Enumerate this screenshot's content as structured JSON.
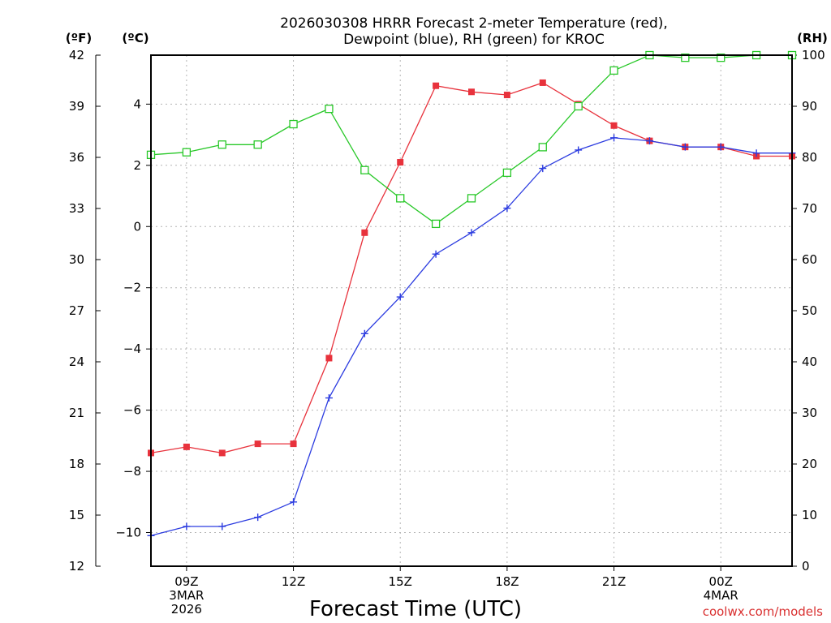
{
  "chart_data": {
    "type": "line",
    "title_lines": [
      "2026030308 HRRR Forecast 2-meter Temperature (red),",
      "Dewpoint (blue), RH (green) for KROC"
    ],
    "xlabel": "Forecast Time (UTC)",
    "credit": "coolwx.com/models",
    "units": {
      "fahrenheit": "(ºF)",
      "celsius": "(ºC)",
      "rh": "(RH)"
    },
    "x_hours": [
      8,
      9,
      10,
      11,
      12,
      13,
      14,
      15,
      16,
      17,
      18,
      19,
      20,
      21,
      22,
      23,
      24,
      25,
      26
    ],
    "x_range": [
      8,
      26
    ],
    "x_ticks": [
      {
        "hour": 9,
        "lines": [
          "09Z",
          "3MAR",
          "2026"
        ]
      },
      {
        "hour": 12,
        "lines": [
          "12Z"
        ]
      },
      {
        "hour": 15,
        "lines": [
          "15Z"
        ]
      },
      {
        "hour": 18,
        "lines": [
          "18Z"
        ]
      },
      {
        "hour": 21,
        "lines": [
          "21Z"
        ]
      },
      {
        "hour": 24,
        "lines": [
          "00Z",
          "4MAR"
        ]
      }
    ],
    "y_celsius": {
      "range": [
        -11.1,
        5.6
      ],
      "ticks": [
        "4",
        "2",
        "0",
        "−2",
        "−4",
        "−6",
        "−8",
        "−10"
      ],
      "tick_values": [
        4,
        2,
        0,
        -2,
        -4,
        -6,
        -8,
        -10
      ]
    },
    "y_fahrenheit": {
      "range": [
        12,
        42
      ],
      "ticks": [
        "42",
        "39",
        "36",
        "33",
        "30",
        "27",
        "24",
        "21",
        "18",
        "15",
        "12"
      ],
      "tick_values": [
        42,
        39,
        36,
        33,
        30,
        27,
        24,
        21,
        18,
        15,
        12
      ]
    },
    "y_rh": {
      "range": [
        0,
        100
      ],
      "ticks": [
        "100",
        "90",
        "80",
        "70",
        "60",
        "50",
        "40",
        "30",
        "20",
        "10",
        "0"
      ],
      "tick_values": [
        100,
        90,
        80,
        70,
        60,
        50,
        40,
        30,
        20,
        10,
        0
      ]
    },
    "series": [
      {
        "name": "Temperature",
        "axis": "celsius",
        "color": "#e8323c",
        "marker": "filled-square",
        "values": [
          -7.4,
          -7.2,
          -7.4,
          -7.1,
          -7.1,
          -4.3,
          -0.2,
          2.1,
          4.6,
          4.4,
          4.3,
          4.7,
          4.0,
          3.3,
          2.8,
          2.6,
          2.6,
          2.3,
          2.3
        ]
      },
      {
        "name": "Dewpoint",
        "axis": "celsius",
        "color": "#2c3ce0",
        "marker": "plus",
        "values": [
          -10.1,
          -9.8,
          -9.8,
          -9.5,
          -9.0,
          -5.6,
          -3.5,
          -2.3,
          -0.9,
          -0.2,
          0.6,
          1.9,
          2.5,
          2.9,
          2.8,
          2.6,
          2.6,
          2.4,
          2.4
        ]
      },
      {
        "name": "RH",
        "axis": "rh",
        "color": "#28c828",
        "marker": "open-square",
        "values": [
          80.5,
          81,
          82.5,
          82.5,
          86.5,
          89.5,
          77.5,
          72,
          67,
          72,
          77,
          82,
          90,
          97,
          100,
          99.5,
          99.5,
          100,
          100
        ]
      }
    ]
  }
}
